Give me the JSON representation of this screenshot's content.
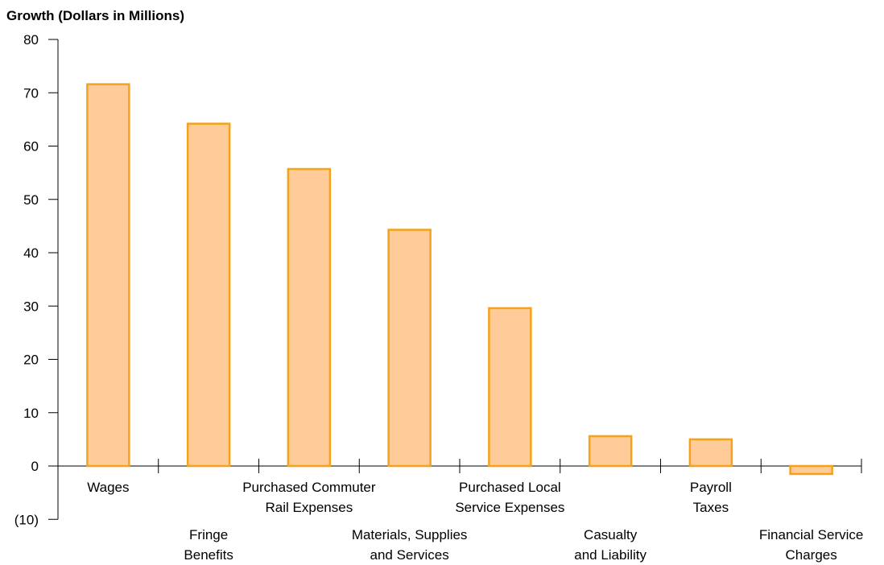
{
  "chart_data": {
    "type": "bar",
    "title": "Growth (Dollars in Millions)",
    "xlabel": "",
    "ylabel": "",
    "ylim": [
      -10,
      80
    ],
    "yticks": [
      -10,
      0,
      10,
      20,
      30,
      40,
      50,
      60,
      70,
      80
    ],
    "ytick_labels": [
      "(10)",
      "0",
      "10",
      "20",
      "30",
      "40",
      "50",
      "60",
      "70",
      "80"
    ],
    "categories": [
      [
        "Wages"
      ],
      [
        "Fringe",
        "Benefits"
      ],
      [
        "Purchased Commuter",
        "Rail Expenses"
      ],
      [
        "Materials, Supplies",
        "and Services"
      ],
      [
        "Purchased  Local",
        "Service Expenses"
      ],
      [
        "Casualty",
        "and Liability"
      ],
      [
        "Payroll",
        "Taxes"
      ],
      [
        "Financial Service",
        "Charges"
      ]
    ],
    "label_row": [
      "upper",
      "lower",
      "upper",
      "lower",
      "upper",
      "lower",
      "upper",
      "lower"
    ],
    "values": [
      71.6,
      64.2,
      55.7,
      44.3,
      29.6,
      5.6,
      5.0,
      -1.5
    ],
    "bar_fill": "#ffcc99",
    "bar_stroke": "#f5a21a",
    "grid": false,
    "legend": "none"
  }
}
